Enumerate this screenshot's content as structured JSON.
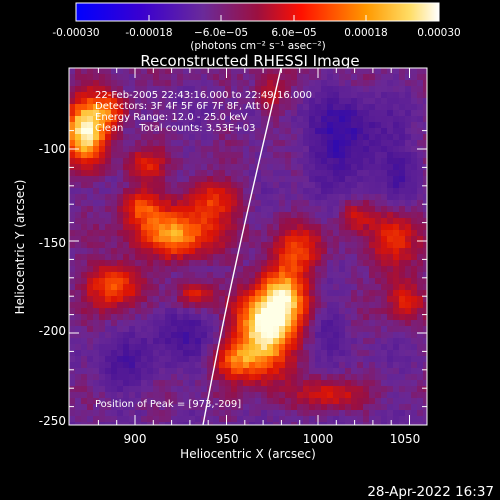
{
  "colorbar": {
    "ticks": [
      "-0.00030",
      "-0.00018",
      "−6.0e−05",
      "6.0e−05",
      "0.00018",
      "0.00030"
    ],
    "unit_label": "(photons cm⁻² s⁻¹ asec⁻²)"
  },
  "image": {
    "title": "Reconstructed RHESSI Image",
    "info_lines": [
      "22-Feb-2005 22:43:16.000 to 22:49:16.000",
      "Detectors: 3F 4F 5F 6F 7F 8F, Att 0",
      "Energy Range: 12.0 - 25.0 keV",
      "Clean     Total counts: 3.53E+03"
    ],
    "peak_text": "Position of Peak = [973,-209]"
  },
  "axes": {
    "xlabel": "Heliocentric X (arcsec)",
    "ylabel": "Heliocentric Y (arcsec)",
    "xticks": [
      "900",
      "950",
      "1000",
      "1050"
    ],
    "yticks": [
      "-100",
      "-150",
      "-200",
      "-250"
    ]
  },
  "footer": {
    "timestamp": "28-Apr-2022 16:37"
  },
  "colors": {
    "background": "#000000",
    "colormap": [
      "#0000ff",
      "#4b0082",
      "#6a2a9a",
      "#b00020",
      "#ff3000",
      "#ff9900",
      "#ffffff"
    ]
  }
}
